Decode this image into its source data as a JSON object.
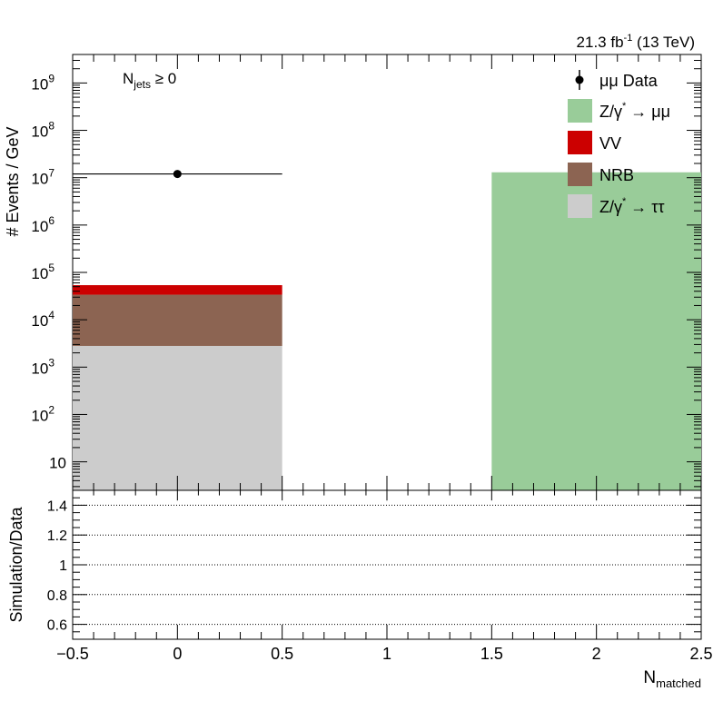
{
  "lumi": {
    "text": "21.3 fb",
    "sup": "-1",
    "tail": " (13 TeV)"
  },
  "njets": {
    "base": "N",
    "sub": "jets",
    "tail": " ≥ 0"
  },
  "colors": {
    "zmumu": "#99cc99",
    "vv": "#cc0000",
    "nrb": "#8c6452",
    "ztautau": "#cccccc",
    "data": "#000000"
  },
  "chart_data": [
    {
      "type": "bar",
      "title": "",
      "ylabel": "# Events / GeV",
      "yscale": "log",
      "ylim": [
        2.5,
        4000000000
      ],
      "xlim": [
        -0.5,
        2.5
      ],
      "y_ticks": [
        {
          "value": 10,
          "label": "10",
          "exp": ""
        },
        {
          "value": 100,
          "label": "10",
          "exp": "2"
        },
        {
          "value": 1000,
          "label": "10",
          "exp": "3"
        },
        {
          "value": 10000,
          "label": "10",
          "exp": "4"
        },
        {
          "value": 100000,
          "label": "10",
          "exp": "5"
        },
        {
          "value": 1000000,
          "label": "10",
          "exp": "6"
        },
        {
          "value": 10000000,
          "label": "10",
          "exp": "7"
        },
        {
          "value": 100000000,
          "label": "10",
          "exp": "8"
        },
        {
          "value": 1000000000,
          "label": "10",
          "exp": "9"
        }
      ],
      "bins": [
        [
          -0.5,
          0.5
        ],
        [
          0.5,
          1.5
        ],
        [
          1.5,
          2.5
        ]
      ],
      "stacked_series": [
        {
          "key": "ztautau",
          "values": [
            2800,
            0,
            0
          ]
        },
        {
          "key": "nrb",
          "values": [
            31000,
            0,
            0
          ]
        },
        {
          "key": "vv",
          "values": [
            20000,
            0,
            0
          ]
        },
        {
          "key": "zmumu",
          "values": [
            0,
            0,
            13000000
          ]
        }
      ],
      "data_points": [
        {
          "x": 0,
          "y": 12000000,
          "xerr": 0.5
        }
      ],
      "legend": {
        "placement": "top-right",
        "entries": [
          {
            "key": "data",
            "style": "marker",
            "label": "μμ Data"
          },
          {
            "key": "zmumu",
            "style": "box",
            "label": "Z/γ",
            "sup": "*",
            "tail": " → μμ"
          },
          {
            "key": "vv",
            "style": "box",
            "label": "VV"
          },
          {
            "key": "nrb",
            "style": "box",
            "label": "NRB"
          },
          {
            "key": "ztautau",
            "style": "box",
            "label": "Z/γ",
            "sup": "*",
            "tail": " → ττ"
          }
        ]
      }
    },
    {
      "type": "line",
      "title": "",
      "ylabel": "Simulation/Data",
      "xlabel": "N",
      "xlabel_sub": "matched",
      "ylim": [
        0.5,
        1.5
      ],
      "xlim": [
        -0.5,
        2.5
      ],
      "grid": true,
      "y_ticks": [
        0.6,
        0.8,
        1,
        1.2,
        1.4
      ],
      "y_tick_labels": [
        "0.6",
        "0.8",
        "1",
        "1.2",
        "1.4"
      ],
      "x_ticks": [
        -0.5,
        0,
        0.5,
        1,
        1.5,
        2,
        2.5
      ],
      "x_tick_labels": [
        "−0.5",
        "0",
        "0.5",
        "1",
        "1.5",
        "2",
        "2.5"
      ],
      "series": []
    }
  ]
}
